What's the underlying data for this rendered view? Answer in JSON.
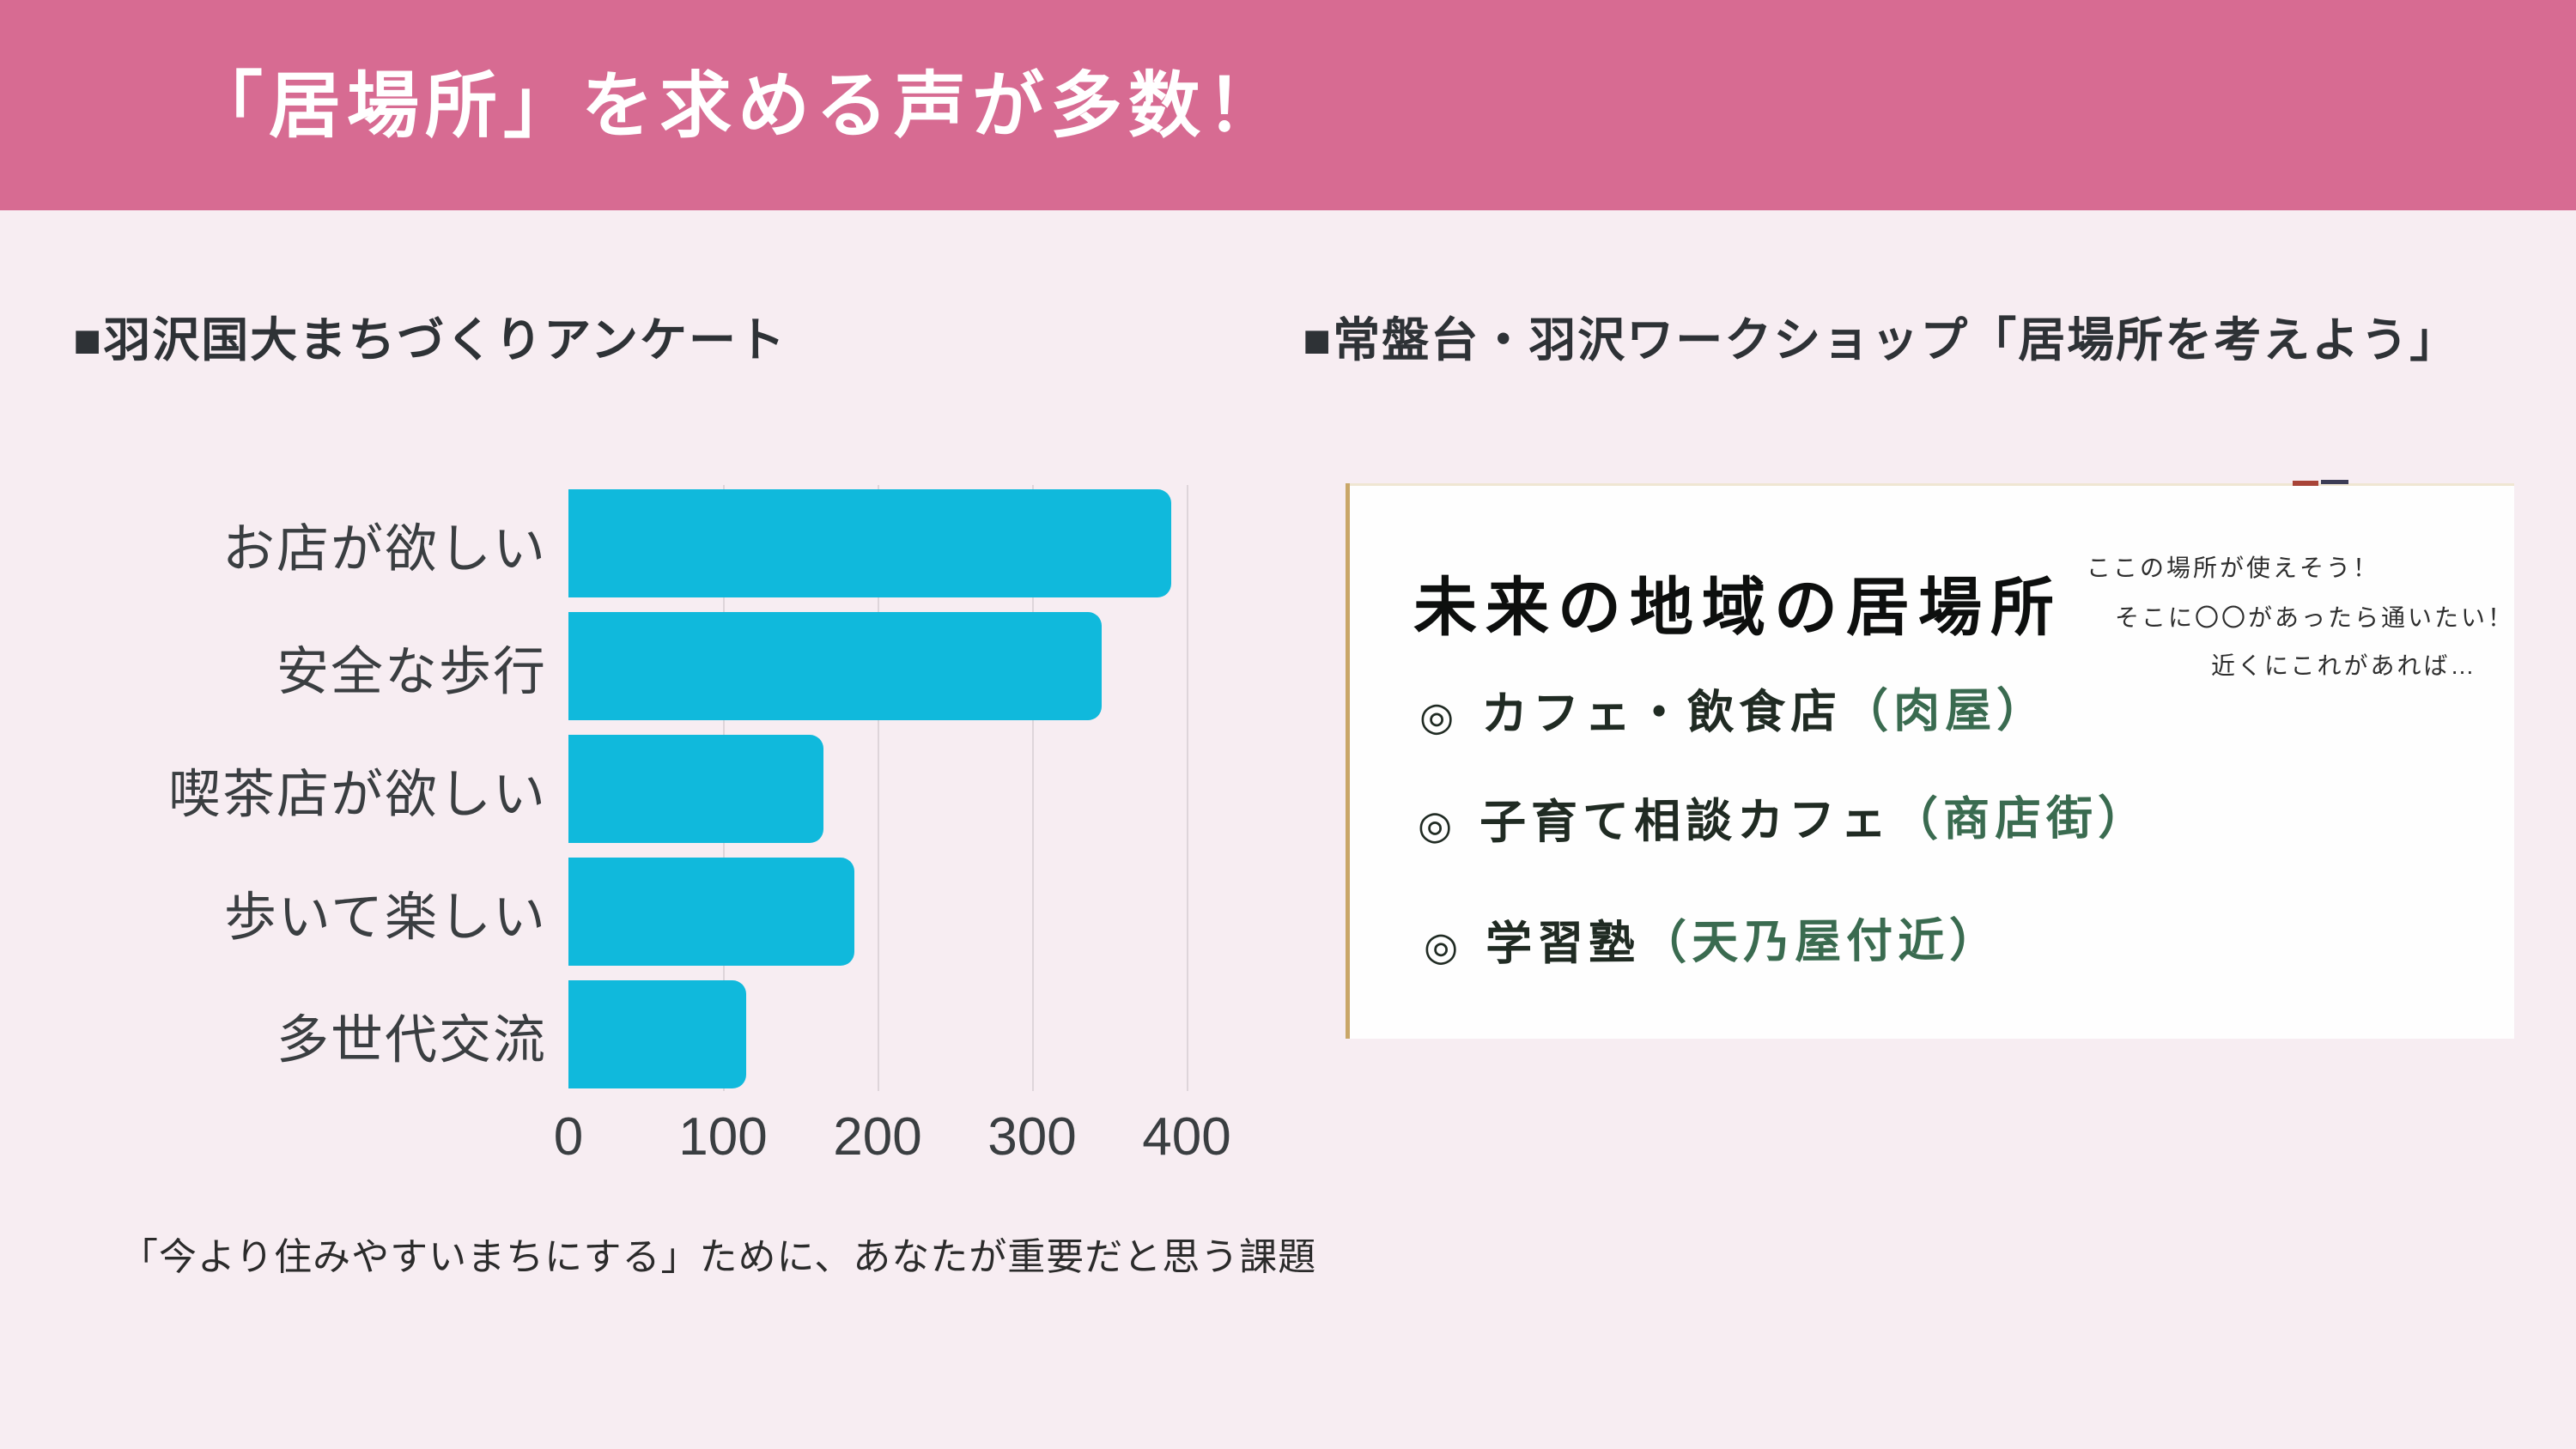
{
  "header": {
    "title": "「居場所」を求める声が多数！",
    "bg_color": "#d76b92"
  },
  "left_panel": {
    "heading": "■羽沢国大まちづくりアンケート",
    "caption": "「今より住みやすいまちにする」ために、あなたが重要だと思う課題"
  },
  "right_panel": {
    "heading": "■常盤台・羽沢ワークショップ「居場所を考えよう」",
    "card": {
      "title": "未来の地域の居場所",
      "notes": [
        "ここの場所が使えそう！",
        "そこに〇〇があったら通いたい！",
        "近くにこれがあれば…"
      ],
      "bullets": [
        {
          "marker": "◎",
          "text": "カフェ・飲食店",
          "annotation": "（肉屋）"
        },
        {
          "marker": "◎",
          "text": "子育て相談カフェ",
          "annotation": "（商店街）"
        },
        {
          "marker": "◎",
          "text": "学習塾",
          "annotation": "（天乃屋付近）"
        }
      ]
    }
  },
  "chart_data": {
    "type": "bar",
    "orientation": "horizontal",
    "title": "",
    "xlabel": "",
    "ylabel": "",
    "categories": [
      "お店が欲しい",
      "安全な歩行",
      "喫茶店が欲しい",
      "歩いて楽しい",
      "多世代交流"
    ],
    "values": [
      390,
      345,
      165,
      185,
      115
    ],
    "x_ticks": [
      0,
      100,
      200,
      300,
      400
    ],
    "x_tick_labels": [
      "0",
      "100",
      "200",
      "300",
      "400"
    ],
    "xlim": [
      0,
      400
    ],
    "grid": true,
    "legend": false,
    "bar_color": "#10b9dc"
  },
  "colors": {
    "header_pink": "#d76b92",
    "page_background": "#f7edf2",
    "bar_cyan": "#10b9dc",
    "gridline": "#ded5da",
    "ink_dark": "#202b23",
    "ink_green": "#3a6b50"
  }
}
